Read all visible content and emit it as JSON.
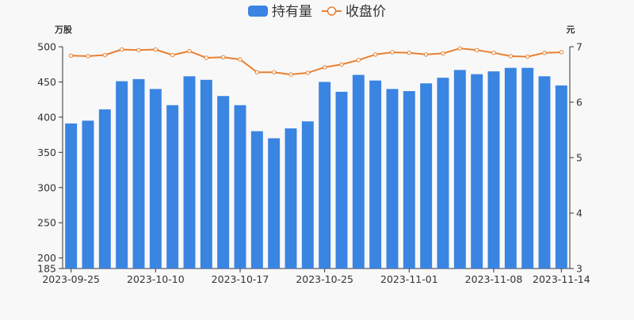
{
  "chart_data": {
    "type": "bar+line",
    "legend": {
      "placement": "top-center",
      "items": [
        {
          "label": "持有量",
          "shape": "rounded-rect",
          "color": "#3a84e2"
        },
        {
          "label": "收盘价",
          "shape": "line-circle",
          "color": "#e98031"
        }
      ]
    },
    "y_left": {
      "unit_label": "万股",
      "min": 185,
      "max": 500,
      "ticks": [
        185,
        200,
        250,
        300,
        350,
        400,
        450,
        500
      ]
    },
    "y_right": {
      "unit_label": "元",
      "min": 3,
      "max": 7,
      "ticks": [
        3,
        4,
        5,
        6,
        7
      ]
    },
    "x_tick_labels": [
      {
        "index": 0,
        "label": "2023-09-25"
      },
      {
        "index": 5,
        "label": "2023-10-10"
      },
      {
        "index": 10,
        "label": "2023-10-17"
      },
      {
        "index": 15,
        "label": "2023-10-25"
      },
      {
        "index": 20,
        "label": "2023-11-01"
      },
      {
        "index": 25,
        "label": "2023-11-08"
      },
      {
        "index": 29,
        "label": "2023-11-14"
      }
    ],
    "series": [
      {
        "name": "持有量",
        "type": "bar",
        "axis": "left",
        "color": "#3a84e2",
        "values": [
          391,
          395,
          411,
          451,
          454,
          440,
          417,
          458,
          453,
          430,
          417,
          380,
          370,
          384,
          394,
          450,
          436,
          460,
          452,
          440,
          437,
          448,
          456,
          467,
          461,
          465,
          470,
          470,
          458,
          445
        ]
      },
      {
        "name": "收盘价",
        "type": "line",
        "axis": "right",
        "color": "#e98031",
        "values": [
          6.84,
          6.83,
          6.85,
          6.95,
          6.94,
          6.95,
          6.85,
          6.92,
          6.8,
          6.81,
          6.77,
          6.54,
          6.54,
          6.5,
          6.53,
          6.63,
          6.68,
          6.76,
          6.86,
          6.9,
          6.89,
          6.86,
          6.88,
          6.97,
          6.94,
          6.89,
          6.83,
          6.82,
          6.89,
          6.9
        ]
      }
    ],
    "grid": false
  }
}
